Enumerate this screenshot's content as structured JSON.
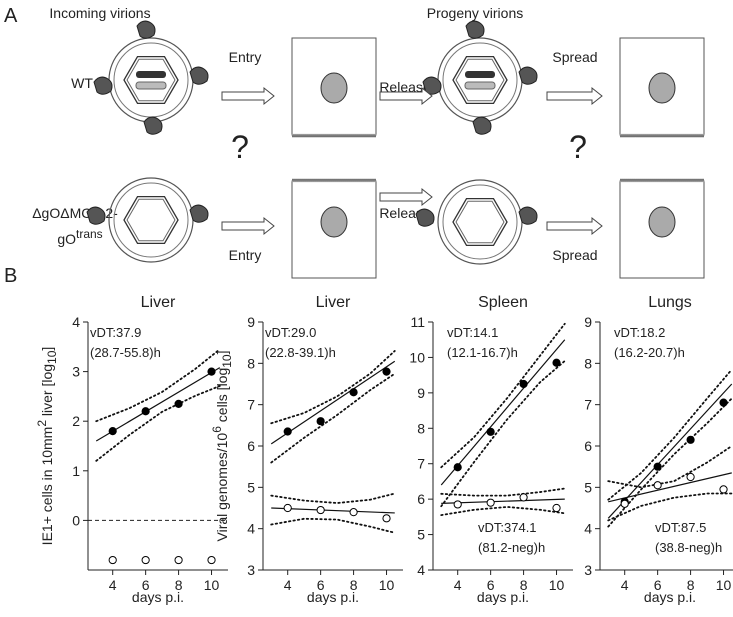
{
  "panels": {
    "a": {
      "label": "A",
      "headers": [
        "Incoming virions",
        "Progeny virions"
      ],
      "wt": {
        "label": "WT",
        "steps": [
          "Entry",
          "Release",
          "Spread"
        ]
      },
      "mutant": {
        "label_line1": "ΔgOΔMCK-2-",
        "label_line2": "gO",
        "label_sup": "trans",
        "steps": [
          "Entry",
          "Release",
          "Spread"
        ]
      },
      "unknown": [
        "?",
        "?"
      ]
    },
    "b": {
      "label": "B"
    }
  },
  "chart_data": [
    {
      "type": "scatter",
      "title": "Liver",
      "ylabel": [
        "IE1+ cells in 10mm",
        "2",
        " liver [log",
        "10",
        "]"
      ],
      "xlabel": "days p.i.",
      "x": [
        4,
        6,
        8,
        10
      ],
      "xlim": [
        2.5,
        11
      ],
      "xticks": [
        4,
        6,
        8,
        10
      ],
      "ylim": [
        -1,
        4
      ],
      "yticks": [
        0,
        1,
        2,
        3,
        4
      ],
      "reference_line": 0,
      "series": [
        {
          "color": "#000000",
          "fill": "#000000",
          "values": [
            1.8,
            2.2,
            2.35,
            3.0
          ]
        },
        {
          "color": "#000000",
          "fill": "#ffffff",
          "values": [
            -0.8,
            -0.8,
            -0.8,
            -0.8
          ]
        }
      ],
      "fits": [
        {
          "x": [
            3,
            10.5
          ],
          "values": [
            1.6,
            3.08
          ]
        }
      ],
      "bands": [
        {
          "x": [
            3,
            5,
            7,
            9,
            10.5
          ],
          "upper": [
            2.0,
            2.26,
            2.59,
            3.05,
            3.45
          ],
          "lower": [
            1.2,
            1.72,
            2.19,
            2.51,
            2.71
          ]
        }
      ],
      "annotations": [
        [
          "vDT:37.9",
          "(28.7-55.8)h"
        ]
      ]
    },
    {
      "type": "scatter",
      "title": "Liver",
      "ylabel": [
        "Viral genomes/10",
        "6",
        " cells [log",
        "10",
        "]"
      ],
      "xlabel": "days p.i.",
      "x": [
        4,
        6,
        8,
        10
      ],
      "xlim": [
        2.5,
        11
      ],
      "xticks": [
        4,
        6,
        8,
        10
      ],
      "ylim": [
        3,
        9
      ],
      "yticks": [
        3,
        4,
        5,
        6,
        7,
        8,
        9
      ],
      "series": [
        {
          "color": "#000000",
          "fill": "#000000",
          "values": [
            6.35,
            6.6,
            7.3,
            7.8
          ]
        },
        {
          "color": "#000000",
          "fill": "#ffffff",
          "values": [
            4.5,
            4.45,
            4.4,
            4.25
          ]
        }
      ],
      "fits": [
        {
          "x": [
            3,
            10.5
          ],
          "values": [
            6.05,
            8.05
          ]
        },
        {
          "x": [
            3,
            10.5
          ],
          "values": [
            4.5,
            4.38
          ]
        }
      ],
      "bands": [
        {
          "x": [
            3,
            5,
            7,
            9,
            10.5
          ],
          "upper": [
            6.55,
            6.8,
            7.2,
            7.75,
            8.3
          ],
          "lower": [
            5.6,
            6.2,
            6.75,
            7.35,
            7.75
          ]
        },
        {
          "x": [
            3,
            5,
            7,
            9,
            10.5
          ],
          "upper": [
            4.8,
            4.68,
            4.62,
            4.7,
            4.85
          ],
          "lower": [
            4.1,
            4.24,
            4.22,
            4.05,
            3.9
          ]
        }
      ],
      "annotations": [
        [
          "vDT:29.0",
          "(22.8-39.1)h"
        ]
      ]
    },
    {
      "type": "scatter",
      "title": "Spleen",
      "xlabel": "days p.i.",
      "x": [
        4,
        6,
        8,
        10
      ],
      "xlim": [
        2.5,
        11
      ],
      "xticks": [
        4,
        6,
        8,
        10
      ],
      "ylim": [
        4,
        11
      ],
      "yticks": [
        4,
        5,
        6,
        7,
        8,
        9,
        10,
        11
      ],
      "series": [
        {
          "color": "#000000",
          "fill": "#000000",
          "values": [
            6.9,
            7.9,
            9.25,
            9.85
          ]
        },
        {
          "color": "#000000",
          "fill": "#ffffff",
          "values": [
            5.85,
            5.9,
            6.05,
            5.75
          ]
        }
      ],
      "fits": [
        {
          "x": [
            3,
            10.5
          ],
          "values": [
            6.4,
            10.5
          ]
        },
        {
          "x": [
            3,
            10.5
          ],
          "values": [
            5.88,
            6.0
          ]
        }
      ],
      "bands": [
        {
          "x": [
            3,
            5,
            7,
            9,
            10.5
          ],
          "upper": [
            6.9,
            7.75,
            8.85,
            10.05,
            10.95
          ],
          "lower": [
            5.8,
            7.05,
            8.25,
            9.3,
            9.9
          ]
        },
        {
          "x": [
            3,
            5,
            7,
            9,
            10.5
          ],
          "upper": [
            6.15,
            6.1,
            6.1,
            6.2,
            6.3
          ],
          "lower": [
            5.55,
            5.7,
            5.78,
            5.7,
            5.6
          ]
        }
      ],
      "annotations": [
        [
          "vDT:14.1",
          "(12.1-16.7)h"
        ],
        [
          "vDT:374.1",
          "(81.2-neg)h"
        ]
      ]
    },
    {
      "type": "scatter",
      "title": "Lungs",
      "xlabel": "days p.i.",
      "x": [
        4,
        6,
        8,
        10
      ],
      "xlim": [
        2.5,
        11
      ],
      "xticks": [
        4,
        6,
        8,
        10
      ],
      "ylim": [
        3,
        9
      ],
      "yticks": [
        3,
        4,
        5,
        6,
        7,
        8,
        9
      ],
      "series": [
        {
          "color": "#000000",
          "fill": "#000000",
          "values": [
            4.65,
            5.5,
            6.15,
            7.05
          ]
        },
        {
          "color": "#000000",
          "fill": "#ffffff",
          "values": [
            4.6,
            5.05,
            5.25,
            4.95
          ]
        }
      ],
      "fits": [
        {
          "x": [
            3,
            10.5
          ],
          "values": [
            4.25,
            7.5
          ]
        },
        {
          "x": [
            3,
            10.5
          ],
          "values": [
            4.65,
            5.35
          ]
        }
      ],
      "bands": [
        {
          "x": [
            3,
            5,
            7,
            9,
            10.5
          ],
          "upper": [
            4.7,
            5.35,
            6.2,
            7.15,
            7.85
          ],
          "lower": [
            4.05,
            4.95,
            5.8,
            6.55,
            7.15
          ]
        },
        {
          "x": [
            3,
            5,
            7,
            9,
            10.5
          ],
          "upper": [
            5.15,
            5.0,
            5.15,
            5.6,
            6.0
          ],
          "lower": [
            4.2,
            4.55,
            4.75,
            4.85,
            4.85
          ]
        }
      ],
      "annotations": [
        [
          "vDT:18.2",
          "(16.2-20.7)h"
        ],
        [
          "vDT:87.5",
          "(38.8-neg)h"
        ]
      ]
    }
  ]
}
